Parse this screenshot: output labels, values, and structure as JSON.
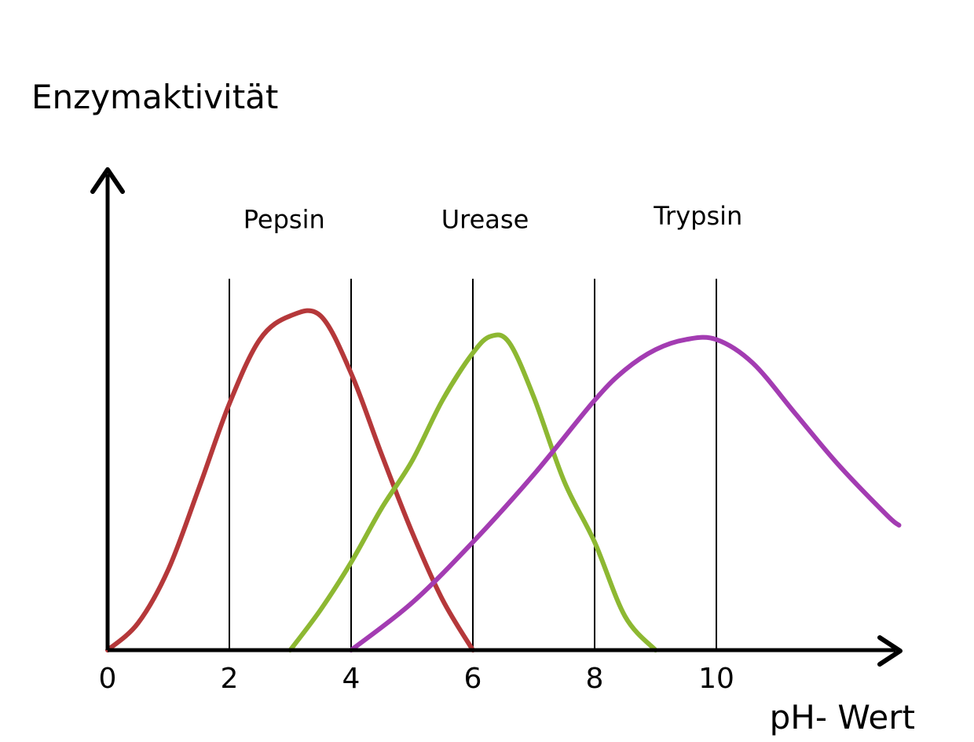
{
  "chart_data": {
    "type": "line",
    "title": "",
    "ylabel": "Enzymaktivität",
    "xlabel": "pH- Wert",
    "xlim": [
      0,
      13
    ],
    "ylim": [
      0,
      100
    ],
    "x_ticks": [
      0,
      2,
      4,
      6,
      8,
      10
    ],
    "gridlines_x": [
      2,
      4,
      6,
      8,
      10
    ],
    "grid": false,
    "legend": "labels above curves",
    "series": [
      {
        "name": "Pepsin",
        "color": "#b5383a",
        "label_x": 2.9,
        "label_y": 125,
        "points": [
          [
            0,
            0
          ],
          [
            0.5,
            8
          ],
          [
            1,
            24
          ],
          [
            1.5,
            48
          ],
          [
            2,
            73
          ],
          [
            2.5,
            92
          ],
          [
            3,
            99
          ],
          [
            3.5,
            99
          ],
          [
            4,
            82
          ],
          [
            4.5,
            58
          ],
          [
            5,
            35
          ],
          [
            5.5,
            15
          ],
          [
            6,
            0
          ]
        ]
      },
      {
        "name": "Urease",
        "color": "#8db832",
        "label_x": 6.2,
        "label_y": 125,
        "points": [
          [
            3,
            0
          ],
          [
            3.5,
            12
          ],
          [
            4,
            26
          ],
          [
            4.5,
            42
          ],
          [
            5,
            56
          ],
          [
            5.5,
            74
          ],
          [
            6,
            88
          ],
          [
            6.3,
            93
          ],
          [
            6.6,
            91
          ],
          [
            7,
            75
          ],
          [
            7.5,
            50
          ],
          [
            8,
            32
          ],
          [
            8.5,
            10
          ],
          [
            9,
            0
          ]
        ]
      },
      {
        "name": "Trypsin",
        "color": "#a33cb2",
        "label_x": 9.7,
        "label_y": 126,
        "points": [
          [
            4,
            0
          ],
          [
            5,
            14
          ],
          [
            6,
            32
          ],
          [
            7,
            52
          ],
          [
            8,
            74
          ],
          [
            8.5,
            83
          ],
          [
            9,
            89
          ],
          [
            9.5,
            92
          ],
          [
            10,
            92
          ],
          [
            10.6,
            85
          ],
          [
            11.3,
            70
          ],
          [
            12,
            55
          ],
          [
            12.8,
            40
          ],
          [
            13,
            37
          ]
        ]
      }
    ]
  }
}
